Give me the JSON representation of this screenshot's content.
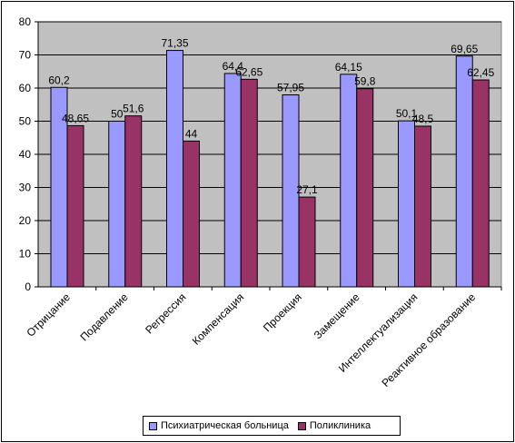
{
  "chart_data": {
    "type": "bar",
    "categories": [
      "Отрицание",
      "Подавление",
      "Регрессия",
      "Компенсация",
      "Проекция",
      "Замещение",
      "Интеллектуализация",
      "Реактивное образование"
    ],
    "series": [
      {
        "name": "Психиатрическая больница",
        "color": "#9999ff",
        "values": [
          60.2,
          50,
          71.35,
          64.4,
          57.95,
          64.15,
          50.1,
          69.65
        ],
        "labels": [
          "60,2",
          "50",
          "71,35",
          "64,4",
          "57,95",
          "64,15",
          "50,1",
          "69,65"
        ]
      },
      {
        "name": "Поликлиника",
        "color": "#993366",
        "values": [
          48.65,
          51.6,
          44,
          62.65,
          27.1,
          59.8,
          48.5,
          62.45
        ],
        "labels": [
          "48,65",
          "51,6",
          "44",
          "62,65",
          "27,1",
          "59,8",
          "48,5",
          "62,45"
        ]
      }
    ],
    "ylim": [
      0,
      80
    ],
    "yticks": [
      "0",
      "10",
      "20",
      "30",
      "40",
      "50",
      "60",
      "70",
      "80"
    ],
    "grid": true,
    "plot_background": "#c0c0c0",
    "legend_position": "bottom"
  }
}
